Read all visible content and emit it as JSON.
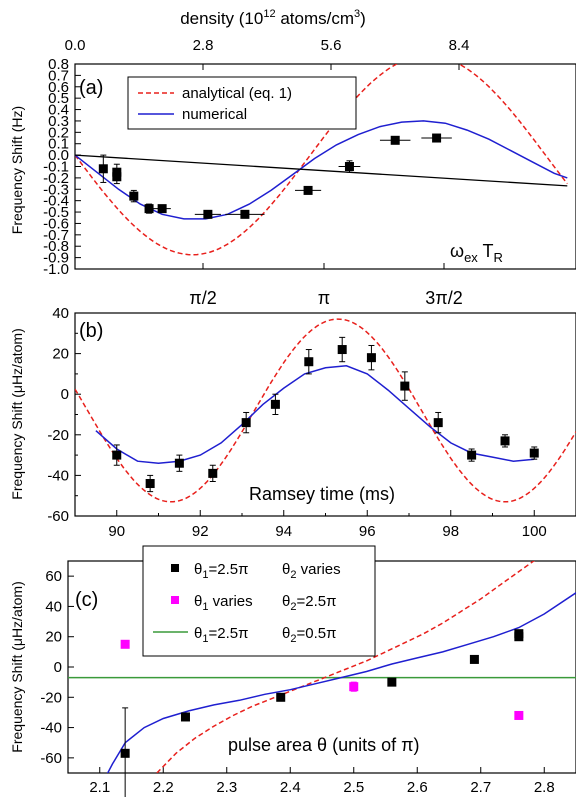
{
  "chart_data": [
    {
      "id": "a",
      "type": "scatter",
      "panel_label": "(a)",
      "top_xlabel": "density (10$12 atoms/cm$3)",
      "top_xlabel_parts": [
        "density (10",
        "12",
        " atoms/cm",
        "3",
        ")"
      ],
      "top_xticks": [
        "0.0",
        "2.8",
        "5.6",
        "8.4"
      ],
      "ylabel": "Frequency Shift (Hz)",
      "ylim": [
        -1.0,
        0.8
      ],
      "yticks": [
        "0.8",
        "0.7",
        "0.6",
        "0.5",
        "0.4",
        "0.3",
        "0.2",
        "0.1",
        "0.0",
        "-0.1",
        "-0.2",
        "-0.3",
        "-0.4",
        "-0.5",
        "-0.6",
        "-0.7",
        "-0.8",
        "-0.9",
        "-1.0"
      ],
      "xlim": [
        0,
        11.5
      ],
      "bottom_xticks": [
        "π/2",
        "π",
        "3π/2"
      ],
      "annotation_parts": [
        "ω",
        "ex",
        " T",
        "R"
      ],
      "legend": {
        "position": "top-left",
        "entries": [
          {
            "label": "analytical (eq. 1)",
            "style": "dashed",
            "color": "#e8201c"
          },
          {
            "label": "numerical",
            "style": "solid",
            "color": "#1f1fd0"
          }
        ]
      },
      "data_points": {
        "x": [
          0.65,
          0.96,
          0.96,
          1.35,
          1.7,
          2.0,
          3.05,
          3.9,
          5.35,
          6.3,
          7.35,
          8.3
        ],
        "y": [
          -0.12,
          -0.15,
          -0.19,
          -0.36,
          -0.47,
          -0.47,
          -0.52,
          -0.52,
          -0.31,
          -0.1,
          0.13,
          0.15
        ],
        "xerr": [
          0.0,
          0.0,
          0.0,
          0.0,
          0.0,
          0.2,
          0.3,
          0.45,
          0.3,
          0.25,
          0.35,
          0.35
        ],
        "yerr": [
          0.12,
          0.07,
          0.06,
          0.05,
          0.04,
          0.03,
          0.02,
          0.02,
          0.02,
          0.05,
          0.03,
          0.03
        ]
      },
      "analytical_curve": {
        "amplitude": 0.875,
        "phase_zero": 4.21,
        "period": 10.8
      },
      "numerical_curve": {
        "x": [
          0.0,
          0.5,
          1.0,
          1.5,
          2.0,
          2.5,
          3.0,
          3.5,
          4.0,
          4.5,
          5.0,
          5.5,
          6.0,
          6.5,
          7.0,
          7.5,
          8.0,
          8.5,
          9.0,
          9.5,
          10.0,
          10.5,
          11.0,
          11.3
        ],
        "y": [
          0.0,
          -0.15,
          -0.3,
          -0.43,
          -0.52,
          -0.56,
          -0.56,
          -0.52,
          -0.43,
          -0.31,
          -0.17,
          -0.03,
          0.09,
          0.18,
          0.25,
          0.29,
          0.3,
          0.28,
          0.22,
          0.14,
          0.04,
          -0.06,
          -0.16,
          -0.2
        ]
      },
      "linear_line": {
        "x": [
          0,
          11.3
        ],
        "y": [
          0.0,
          -0.27
        ]
      }
    },
    {
      "id": "b",
      "type": "scatter",
      "panel_label": "(b)",
      "xlabel": "Ramsey time (ms)",
      "ylabel": "Frequency Shift (μHz/atom)",
      "xlim": [
        89,
        101
      ],
      "ylim": [
        -60,
        40
      ],
      "xticks": [
        "90",
        "92",
        "94",
        "96",
        "98",
        "100"
      ],
      "yticks": [
        "40",
        "20",
        "0",
        "-20",
        "-40",
        "-60"
      ],
      "data_points": {
        "x": [
          90.0,
          90.8,
          91.5,
          92.3,
          93.1,
          93.8,
          94.6,
          95.4,
          96.1,
          96.9,
          97.7,
          98.5,
          99.3,
          100.0
        ],
        "y": [
          -30,
          -44,
          -34,
          -39,
          -14,
          -5,
          16,
          22,
          18,
          4,
          -14,
          -30,
          -23,
          -29
        ],
        "yerr": [
          5,
          4,
          4,
          4,
          5,
          5,
          6,
          6,
          6,
          7,
          5,
          3,
          3,
          3
        ]
      },
      "analytical_curve": {
        "center": 95.3,
        "mid": -8,
        "amp": 45,
        "period": 8.0
      },
      "numerical_curve": {
        "x": [
          89.5,
          90.0,
          90.5,
          91.0,
          91.5,
          92.0,
          92.5,
          93.0,
          93.5,
          94.0,
          94.5,
          95.0,
          95.5,
          96.0,
          96.5,
          97.0,
          97.5,
          98.0,
          98.5,
          99.0,
          99.5,
          100.0
        ],
        "y": [
          -18,
          -27,
          -33,
          -34,
          -33,
          -30,
          -24,
          -15,
          -5,
          3,
          10,
          13,
          14,
          10,
          2,
          -7,
          -16,
          -24,
          -29,
          -31,
          -33,
          -32
        ]
      }
    },
    {
      "id": "c",
      "type": "scatter",
      "panel_label": "(c)",
      "xlabel": "pulse area θ (units of π)",
      "ylabel": "Frequency Shift (μHz/atom)",
      "xlim": [
        2.05,
        2.85
      ],
      "ylim": [
        -70,
        70
      ],
      "xticks": [
        "2.1",
        "2.2",
        "2.3",
        "2.4",
        "2.5",
        "2.6",
        "2.7",
        "2.8"
      ],
      "yticks": [
        "60",
        "40",
        "20",
        "0",
        "-20",
        "-40",
        "-60"
      ],
      "legend": {
        "position": "top-left",
        "entries": [
          {
            "parts": [
              "θ",
              "1",
              "=2.5π",
              "θ",
              "2",
              " varies"
            ],
            "marker": "square",
            "color": "#000000"
          },
          {
            "parts": [
              "θ",
              "1",
              " varies",
              "θ",
              "2",
              "=2.5π"
            ],
            "marker": "square",
            "color": "#ff00ff"
          },
          {
            "parts": [
              "θ",
              "1",
              "=2.5π",
              "θ",
              "2",
              "=0.5π"
            ],
            "marker": "line",
            "color": "#3a9a3a"
          }
        ]
      },
      "black_points": {
        "x": [
          2.14,
          2.235,
          2.385,
          2.56,
          2.69,
          2.76,
          2.76
        ],
        "y": [
          -57,
          -33,
          -20,
          -10,
          5,
          20,
          22
        ],
        "yerr": [
          30,
          2,
          1,
          1,
          1,
          1,
          1
        ]
      },
      "magenta_points": {
        "x": [
          2.14,
          2.5,
          2.76
        ],
        "y": [
          15,
          -13,
          -32
        ],
        "yerr": [
          2,
          3,
          1
        ]
      },
      "green_level": -7,
      "analytical_curve": {
        "x": [
          2.19,
          2.22,
          2.25,
          2.28,
          2.31,
          2.34,
          2.37,
          2.4,
          2.43,
          2.46,
          2.49,
          2.52,
          2.55,
          2.58,
          2.61,
          2.64,
          2.67,
          2.7,
          2.73,
          2.76,
          2.79,
          2.81
        ],
        "y": [
          -70,
          -57,
          -47,
          -39,
          -32,
          -26,
          -21,
          -16,
          -11,
          -6,
          -1,
          4,
          10,
          16,
          22,
          29,
          37,
          45,
          54,
          63,
          72,
          78
        ]
      },
      "numerical_curve": {
        "x": [
          2.1,
          2.12,
          2.14,
          2.17,
          2.2,
          2.24,
          2.28,
          2.32,
          2.36,
          2.4,
          2.44,
          2.48,
          2.52,
          2.56,
          2.6,
          2.64,
          2.68,
          2.72,
          2.76,
          2.8,
          2.85
        ],
        "y": [
          -80,
          -64,
          -50,
          -40,
          -34,
          -29,
          -25,
          -22,
          -18,
          -15,
          -11,
          -7,
          -3,
          2,
          6,
          10,
          15,
          20,
          26,
          35,
          49
        ]
      }
    }
  ]
}
